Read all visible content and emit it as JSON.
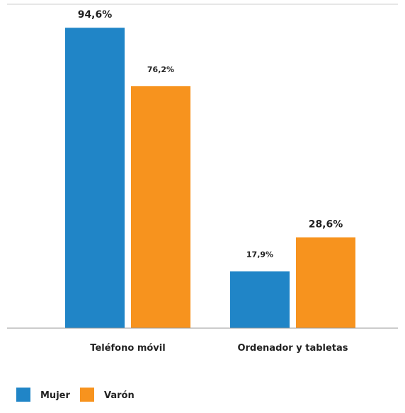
{
  "colors": {
    "mujer": "#2085c7",
    "varon": "#f7931e",
    "axis": "#999999",
    "topline": "#cccccc",
    "text": "#222222"
  },
  "chart_data": {
    "type": "bar",
    "categories": [
      "Teléfono móvil",
      "Ordenador y tabletas"
    ],
    "series": [
      {
        "name": "Mujer",
        "color": "#2085c7",
        "values": [
          94.6,
          17.9
        ],
        "labels": [
          "94,6%",
          "17,9%"
        ],
        "label_highlight": [
          true,
          false
        ]
      },
      {
        "name": "Varón",
        "color": "#f7931e",
        "values": [
          76.2,
          28.6
        ],
        "labels": [
          "76,2%",
          "28,6%"
        ],
        "label_highlight": [
          false,
          true
        ]
      }
    ],
    "ylim": [
      0,
      100
    ],
    "grid": false,
    "legend_position": "bottom-left"
  }
}
